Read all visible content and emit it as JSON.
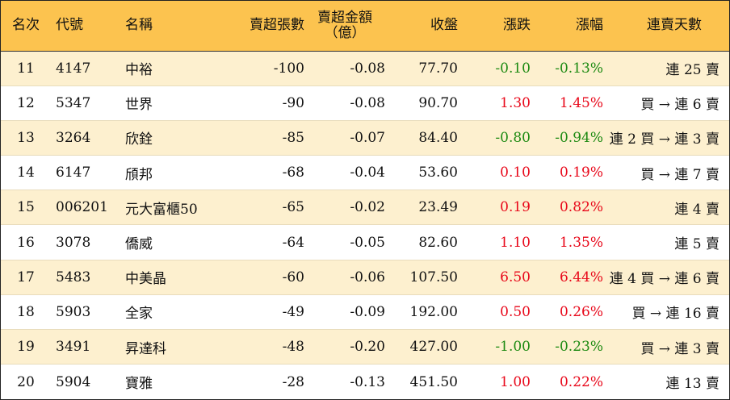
{
  "table": {
    "headers": {
      "rank": "名次",
      "code": "代號",
      "name": "名稱",
      "net_sell_lots": "賣超張數",
      "net_sell_amount_line1": "賣超金額",
      "net_sell_amount_line2": "（億）",
      "close": "收盤",
      "change": "漲跌",
      "change_pct": "漲幅",
      "streak": "連賣天數"
    },
    "rows": [
      {
        "rank": "11",
        "code": "4147",
        "name": "中裕",
        "lots": "-100",
        "amount": "-0.08",
        "close": "77.70",
        "change": "-0.10",
        "pct": "-0.13%",
        "streak": "連 25 賣",
        "dir": "down"
      },
      {
        "rank": "12",
        "code": "5347",
        "name": "世界",
        "lots": "-90",
        "amount": "-0.08",
        "close": "90.70",
        "change": "1.30",
        "pct": "1.45%",
        "streak": "買 → 連 6 賣",
        "dir": "up"
      },
      {
        "rank": "13",
        "code": "3264",
        "name": "欣銓",
        "lots": "-85",
        "amount": "-0.07",
        "close": "84.40",
        "change": "-0.80",
        "pct": "-0.94%",
        "streak": "連 2 買 → 連 3 賣",
        "dir": "down"
      },
      {
        "rank": "14",
        "code": "6147",
        "name": "頎邦",
        "lots": "-68",
        "amount": "-0.04",
        "close": "53.60",
        "change": "0.10",
        "pct": "0.19%",
        "streak": "買 → 連 7 賣",
        "dir": "up"
      },
      {
        "rank": "15",
        "code": "006201",
        "name": "元大富櫃50",
        "lots": "-65",
        "amount": "-0.02",
        "close": "23.49",
        "change": "0.19",
        "pct": "0.82%",
        "streak": "連 4 賣",
        "dir": "up"
      },
      {
        "rank": "16",
        "code": "3078",
        "name": "僑威",
        "lots": "-64",
        "amount": "-0.05",
        "close": "82.60",
        "change": "1.10",
        "pct": "1.35%",
        "streak": "連 5 賣",
        "dir": "up"
      },
      {
        "rank": "17",
        "code": "5483",
        "name": "中美晶",
        "lots": "-60",
        "amount": "-0.06",
        "close": "107.50",
        "change": "6.50",
        "pct": "6.44%",
        "streak": "連 4 買 → 連 6 賣",
        "dir": "up"
      },
      {
        "rank": "18",
        "code": "5903",
        "name": "全家",
        "lots": "-49",
        "amount": "-0.09",
        "close": "192.00",
        "change": "0.50",
        "pct": "0.26%",
        "streak": "買 → 連 16 賣",
        "dir": "up"
      },
      {
        "rank": "19",
        "code": "3491",
        "name": "昇達科",
        "lots": "-48",
        "amount": "-0.20",
        "close": "427.00",
        "change": "-1.00",
        "pct": "-0.23%",
        "streak": "買 → 連 3 賣",
        "dir": "down"
      },
      {
        "rank": "20",
        "code": "5904",
        "name": "寶雅",
        "lots": "-28",
        "amount": "-0.13",
        "close": "451.50",
        "change": "1.00",
        "pct": "0.22%",
        "streak": "連 13 賣",
        "dir": "up"
      }
    ],
    "colors": {
      "header_bg": "#fcc34f",
      "odd_row_bg": "#fdf0cf",
      "even_row_bg": "#ffffff",
      "up": "#e8081a",
      "down": "#1d8a12"
    }
  }
}
